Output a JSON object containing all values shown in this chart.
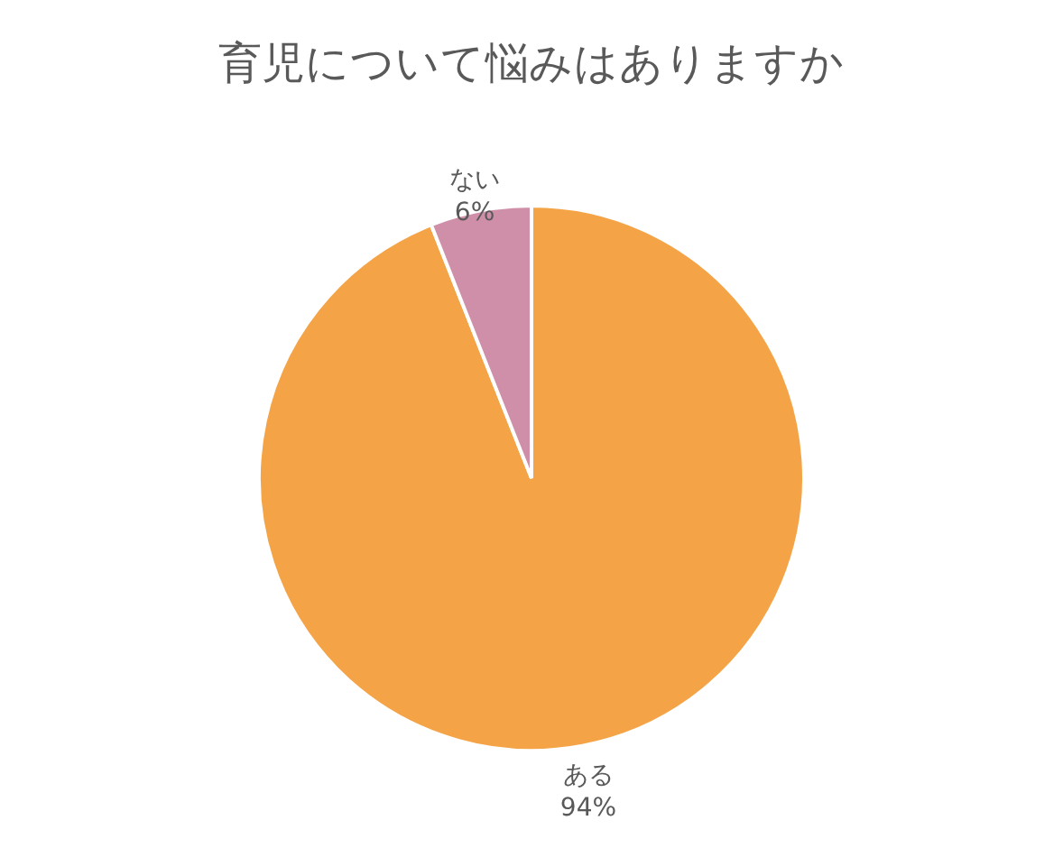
{
  "chart_data": {
    "type": "pie",
    "title": "育児について悩みはありますか",
    "categories": [
      "ある",
      "ない"
    ],
    "values": [
      94,
      6
    ],
    "colors": [
      "#f4a447",
      "#d08fa8"
    ],
    "value_labels": [
      "94%",
      "6%"
    ],
    "legend": false
  }
}
